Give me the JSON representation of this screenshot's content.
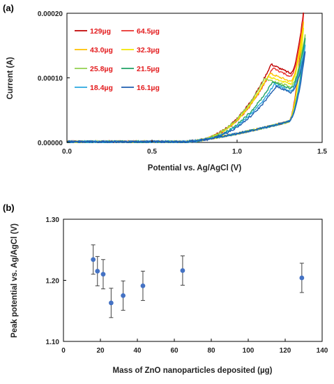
{
  "chart_data": [
    {
      "panel_label": "(a)",
      "type": "line",
      "xlabel": "Potential vs. Ag/AgCl  (V)",
      "ylabel": "Current  (A)",
      "xlim": [
        0,
        1.5
      ],
      "ylim": [
        0,
        0.0002
      ],
      "x_ticks": [
        0,
        0.5,
        1.0,
        1.5
      ],
      "x_tick_labels": [
        "0.0",
        "0.5",
        "1.0",
        "1.5"
      ],
      "y_ticks": [
        0,
        0.0001,
        0.0002
      ],
      "y_tick_labels": [
        "0.00000",
        "0.00010",
        "0.00020"
      ],
      "grid": false,
      "legend_placement": "top-left",
      "series": [
        {
          "name": "129µg",
          "color": "#c00000",
          "peak_x": 1.2,
          "peak_y": 0.00012,
          "max_x": 1.39,
          "max_y": 0.0002
        },
        {
          "name": "64.5µg",
          "color": "#e8302c",
          "peak_x": 1.21,
          "peak_y": 0.000114,
          "max_x": 1.39,
          "max_y": 0.000195
        },
        {
          "name": "43.0µg",
          "color": "#ffc000",
          "peak_x": 1.19,
          "peak_y": 0.000106,
          "max_x": 1.39,
          "max_y": 0.000185
        },
        {
          "name": "32.3µg",
          "color": "#f2e600",
          "peak_x": 1.18,
          "peak_y": 0.000101,
          "max_x": 1.39,
          "max_y": 0.000175
        },
        {
          "name": "25.8µg",
          "color": "#92d050",
          "peak_x": 1.16,
          "peak_y": 9.7e-05,
          "max_x": 1.4,
          "max_y": 0.000165
        },
        {
          "name": "21.5µg",
          "color": "#21a366",
          "peak_x": 1.21,
          "peak_y": 9.3e-05,
          "max_x": 1.4,
          "max_y": 0.00016
        },
        {
          "name": "18.4µg",
          "color": "#2aa7e0",
          "peak_x": 1.22,
          "peak_y": 8.9e-05,
          "max_x": 1.4,
          "max_y": 0.00015
        },
        {
          "name": "16.1µg",
          "color": "#1f5fb0",
          "peak_x": 1.23,
          "peak_y": 8.6e-05,
          "max_x": 1.4,
          "max_y": 0.00014
        }
      ]
    },
    {
      "panel_label": "(b)",
      "type": "scatter",
      "xlabel": "Mass of ZnO nanoparticles deposited (µg)",
      "ylabel": "Peak potential vs. Ag/AgCl  (V)",
      "xlim": [
        0,
        140
      ],
      "ylim": [
        1.1,
        1.3
      ],
      "x_ticks": [
        0,
        20,
        40,
        60,
        80,
        100,
        120,
        140
      ],
      "x_tick_labels": [
        "0",
        "20",
        "40",
        "60",
        "80",
        "100",
        "120",
        "140"
      ],
      "y_ticks": [
        1.1,
        1.2,
        1.3
      ],
      "y_tick_labels": [
        "1.10",
        "1.20",
        "1.30"
      ],
      "grid": false,
      "marker_color": "#4472c4",
      "errorbar_color": "#404040",
      "points": [
        {
          "x": 16.1,
          "y": 1.234,
          "err": 0.024
        },
        {
          "x": 18.4,
          "y": 1.215,
          "err": 0.024
        },
        {
          "x": 21.5,
          "y": 1.21,
          "err": 0.024
        },
        {
          "x": 25.8,
          "y": 1.163,
          "err": 0.024
        },
        {
          "x": 32.3,
          "y": 1.175,
          "err": 0.024
        },
        {
          "x": 43.0,
          "y": 1.191,
          "err": 0.024
        },
        {
          "x": 64.5,
          "y": 1.216,
          "err": 0.024
        },
        {
          "x": 129.0,
          "y": 1.204,
          "err": 0.024
        }
      ]
    }
  ]
}
